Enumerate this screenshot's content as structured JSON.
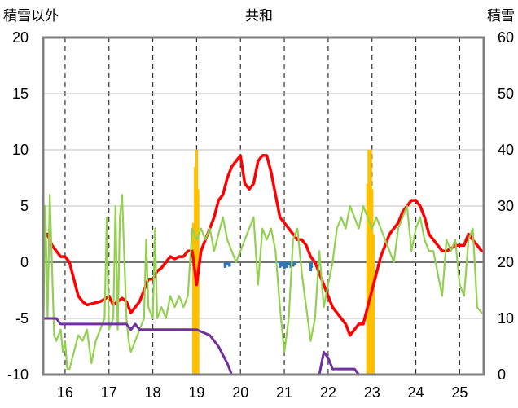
{
  "chart_data": {
    "type": "line",
    "title": "共和",
    "left_axis_label": "積雪以外",
    "right_axis_label": "積雪",
    "xlim": [
      15.5,
      25.55
    ],
    "ylim_left": [
      -10,
      20
    ],
    "ylim_right": [
      0,
      60
    ],
    "x_ticks": [
      "16",
      "17",
      "18",
      "19",
      "20",
      "21",
      "22",
      "23",
      "24",
      "25"
    ],
    "y_left_ticks": [
      "20",
      "15",
      "10",
      "5",
      "0",
      "-5",
      "-10"
    ],
    "y_right_ticks": [
      "60",
      "50",
      "40",
      "30",
      "20",
      "10",
      "0"
    ],
    "grid": true,
    "legend": "none",
    "colors": {
      "red": "#ff0000",
      "green": "#92d050",
      "purple": "#7030a0",
      "orange": "#ffc000",
      "blue": "#2e75b6",
      "frame": "#808080",
      "grid": "#333333"
    },
    "series": [
      {
        "axis": "left",
        "kind": "line",
        "color": "#ff0000",
        "x": [
          15.5,
          15.6,
          15.7,
          15.8,
          15.9,
          16.0,
          16.1,
          16.2,
          16.3,
          16.4,
          16.5,
          16.6,
          16.7,
          16.8,
          16.9,
          17.0,
          17.1,
          17.2,
          17.3,
          17.4,
          17.5,
          17.6,
          17.7,
          17.8,
          17.9,
          18.0,
          18.1,
          18.2,
          18.3,
          18.4,
          18.5,
          18.6,
          18.7,
          18.8,
          18.9,
          19.0,
          19.1,
          19.2,
          19.3,
          19.4,
          19.5,
          19.6,
          19.7,
          19.8,
          19.9,
          20.0,
          20.1,
          20.2,
          20.3,
          20.4,
          20.5,
          20.6,
          20.7,
          20.8,
          20.9,
          21.0,
          21.1,
          21.2,
          21.3,
          21.4,
          21.5,
          21.6,
          21.7,
          21.8,
          21.9,
          22.0,
          22.1,
          22.2,
          22.3,
          22.4,
          22.5,
          22.6,
          22.7,
          22.8,
          22.9,
          23.0,
          23.1,
          23.2,
          23.3,
          23.4,
          23.5,
          23.6,
          23.7,
          23.8,
          23.9,
          24.0,
          24.1,
          24.2,
          24.3,
          24.4,
          24.5,
          24.6,
          24.7,
          24.8,
          24.9,
          25.0,
          25.1,
          25.2,
          25.3,
          25.4,
          25.5
        ],
        "y": [
          2.0,
          2.5,
          1.5,
          1.0,
          0.5,
          0.5,
          0.0,
          -1.5,
          -3.0,
          -3.5,
          -3.8,
          -3.7,
          -3.6,
          -3.5,
          -3.3,
          -3.0,
          -3.8,
          -3.5,
          -3.2,
          -3.5,
          -4.5,
          -4.0,
          -3.5,
          -2.5,
          -1.5,
          -1.5,
          -0.8,
          -0.5,
          0.0,
          0.5,
          0.3,
          0.5,
          0.5,
          1.0,
          1.0,
          -2.0,
          1.0,
          2.0,
          3.0,
          4.0,
          5.5,
          6.0,
          7.5,
          8.5,
          9.0,
          9.5,
          7.0,
          6.5,
          7.0,
          9.0,
          9.5,
          9.5,
          8.0,
          6.0,
          4.0,
          3.5,
          3.0,
          2.5,
          2.0,
          2.0,
          1.5,
          0.5,
          0.0,
          -1.0,
          -2.0,
          -3.0,
          -4.0,
          -4.5,
          -5.0,
          -5.5,
          -6.5,
          -6.0,
          -5.5,
          -5.5,
          -4.0,
          -2.5,
          -1.0,
          0.5,
          1.5,
          2.5,
          3.0,
          3.5,
          4.5,
          5.0,
          5.5,
          5.5,
          5.0,
          4.0,
          2.5,
          2.0,
          1.5,
          1.0,
          1.0,
          1.2,
          1.5,
          1.5,
          1.5,
          2.5,
          2.0,
          1.5,
          1.0
        ]
      },
      {
        "axis": "left",
        "kind": "line",
        "color": "#92d050",
        "x": [
          15.5,
          15.55,
          15.6,
          15.65,
          15.75,
          15.8,
          15.9,
          15.95,
          16.0,
          16.05,
          16.1,
          16.2,
          16.3,
          16.4,
          16.5,
          16.6,
          16.7,
          16.8,
          16.9,
          16.95,
          17.0,
          17.1,
          17.15,
          17.2,
          17.25,
          17.3,
          17.4,
          17.45,
          17.5,
          17.6,
          17.7,
          17.8,
          17.85,
          17.9,
          18.0,
          18.05,
          18.1,
          18.2,
          18.3,
          18.4,
          18.5,
          18.6,
          18.7,
          18.8,
          18.9,
          19.0,
          19.1,
          19.2,
          19.3,
          19.4,
          19.5,
          19.6,
          19.7,
          19.8,
          19.9,
          20.0,
          20.1,
          20.2,
          20.3,
          20.4,
          20.5,
          20.6,
          20.7,
          20.8,
          20.9,
          21.0,
          21.1,
          21.2,
          21.3,
          21.4,
          21.5,
          21.6,
          21.7,
          21.8,
          21.9,
          22.0,
          22.1,
          22.2,
          22.3,
          22.4,
          22.5,
          22.6,
          22.7,
          22.8,
          22.9,
          23.0,
          23.1,
          23.2,
          23.3,
          23.4,
          23.5,
          23.6,
          23.7,
          23.8,
          23.9,
          24.0,
          24.1,
          24.2,
          24.3,
          24.4,
          24.5,
          24.6,
          24.7,
          24.8,
          24.9,
          25.0,
          25.1,
          25.2,
          25.3,
          25.4,
          25.5
        ],
        "y": [
          -7,
          5,
          -5,
          6,
          -6.5,
          -7,
          -6,
          -8,
          -7,
          -9.5,
          -9.5,
          -8,
          -6.5,
          -7,
          -6,
          -9,
          -7,
          -6,
          -5,
          4,
          -6,
          -5,
          5,
          -6,
          4,
          6,
          -5,
          -7,
          -8,
          -7,
          -6,
          -5,
          2,
          -4,
          -5,
          3,
          -5,
          -4,
          -5,
          -3,
          -4,
          -3,
          -4,
          -3,
          3,
          2,
          3,
          2,
          3,
          1,
          2.5,
          4,
          2,
          1,
          0,
          1,
          2,
          3,
          4,
          -2,
          3,
          2,
          3,
          1,
          -4,
          -8,
          -5,
          2,
          3,
          -1,
          -4,
          -7,
          -5,
          1,
          -4,
          -2,
          0,
          3,
          4,
          3,
          5,
          4,
          3,
          5,
          4,
          3,
          4,
          3,
          2,
          1,
          0,
          3,
          4,
          5,
          1,
          3,
          4,
          2,
          1,
          1,
          -1,
          -3,
          2,
          1,
          2,
          -2,
          -3,
          2,
          3,
          -4,
          -4.5
        ]
      },
      {
        "axis": "right",
        "kind": "line",
        "color": "#7030a0",
        "x": [
          15.5,
          15.8,
          15.9,
          16.0,
          17.3,
          17.4,
          17.5,
          17.6,
          17.7,
          18.0,
          18.5,
          19.0,
          19.3,
          19.5,
          19.7,
          19.8,
          20.0,
          21.0,
          21.8,
          21.9,
          22.0,
          22.1,
          22.6,
          22.7,
          23.0,
          24.0,
          25.5
        ],
        "y": [
          10,
          10,
          9,
          9,
          9,
          9,
          8,
          9,
          8,
          8,
          8,
          8,
          7,
          5,
          2,
          0,
          0,
          0,
          0,
          4,
          3,
          1,
          1,
          0,
          0,
          0,
          0
        ]
      },
      {
        "axis": "right",
        "kind": "bar",
        "color": "#ffc000",
        "x": [
          18.93,
          18.97,
          19.0,
          19.03,
          22.9,
          22.93,
          22.97,
          23.0,
          23.03
        ],
        "y": [
          27,
          37,
          40,
          33,
          34,
          40,
          40,
          33,
          25
        ]
      },
      {
        "axis": "left",
        "kind": "bar",
        "color": "#2e75b6",
        "x": [
          19.65,
          19.7,
          19.75,
          20.9,
          20.95,
          21.0,
          21.05,
          21.1,
          21.15,
          21.2,
          21.25,
          21.6,
          21.62
        ],
        "y": [
          -0.5,
          -0.3,
          -0.4,
          -0.5,
          -0.4,
          -0.6,
          -0.5,
          -0.3,
          -0.5,
          -0.4,
          -0.3,
          -0.8,
          -0.5
        ]
      }
    ]
  }
}
